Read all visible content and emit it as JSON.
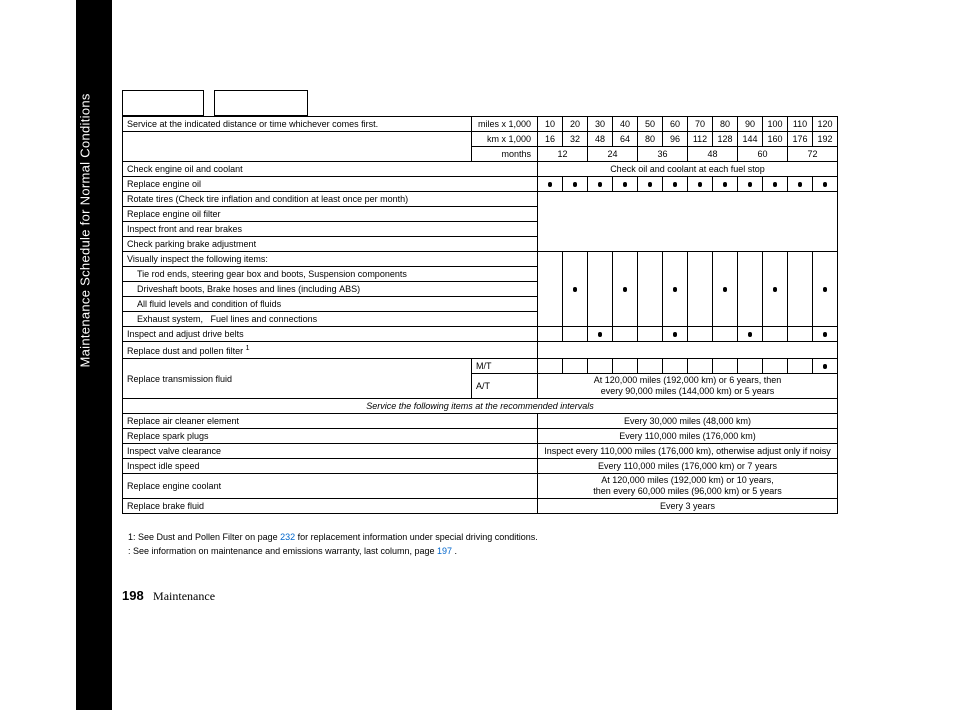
{
  "sidebar_title": "Maintenance Schedule for Normal Conditions",
  "header": {
    "service_text": "Service at the indicated distance or time     whichever comes first.",
    "miles_label": "miles x 1,000",
    "km_label": "km x 1,000",
    "months_label": "months",
    "miles": [
      "10",
      "20",
      "30",
      "40",
      "50",
      "60",
      "70",
      "80",
      "90",
      "100",
      "110",
      "120"
    ],
    "km": [
      "16",
      "32",
      "48",
      "64",
      "80",
      "96",
      "112",
      "128",
      "144",
      "160",
      "176",
      "192"
    ],
    "months": [
      "12",
      "24",
      "36",
      "48",
      "60",
      "72"
    ],
    "check_stop": "Check oil and coolant at each fuel stop"
  },
  "rows": {
    "r1": "Check engine oil and coolant",
    "r2": "Replace engine oil",
    "r3": "Rotate tires (Check tire inflation and condition at least once per month)",
    "r4": "Replace engine oil filter",
    "r5": "Inspect front and rear brakes",
    "r6": "Check parking brake adjustment",
    "r7": "Visually inspect the following items:",
    "r7a": "    Tie rod ends, steering gear box and boots, Suspension components",
    "r7b": "    Driveshaft boots, Brake hoses and lines (including ABS)",
    "r7c": "    All fluid levels and condition of fluids",
    "r7d": "    Exhaust system,   Fuel lines and connections",
    "r8": "Inspect and adjust drive belts",
    "r9": "Replace dust and pollen filter",
    "r9sup": "1",
    "r10": "Replace transmission fluid",
    "r10mt": "M/T",
    "r10at": "A/T",
    "r10at_text1": "At 120,000 miles (192,000 km) or 6 years, then",
    "r10at_text2": "every 90,000 miles (144,000 km) or 5 years",
    "section2": "Service the following items at the recommended intervals",
    "r11": "Replace air cleaner element",
    "r11v": "Every 30,000 miles (48,000 km)",
    "r12": "Replace spark plugs",
    "r12v": "Every 110,000 miles (176,000 km)",
    "r13": "Inspect valve clearance",
    "r13v": "Inspect every 110,000 miles (176,000 km), otherwise adjust only if noisy",
    "r14": "Inspect idle speed",
    "r14v": "Every 110,000 miles (176,000 km) or 7 years",
    "r15": "Replace engine coolant",
    "r15v1": "At 120,000 miles (192,000 km) or 10 years,",
    "r15v2": "then every 60,000 miles (96,000 km) or 5 years",
    "r16": "Replace brake fluid",
    "r16v": "Every 3 years"
  },
  "footnotes": {
    "f1a": "1: See Dust and Pollen Filter on page",
    "f1link": "232",
    "f1b": " for replacement information under special driving conditions.",
    "f2a": "  : See information on maintenance and emissions warranty, last column, page ",
    "f2link": "197",
    "f2b": " ."
  },
  "footer": {
    "page": "198",
    "section": "Maintenance"
  }
}
